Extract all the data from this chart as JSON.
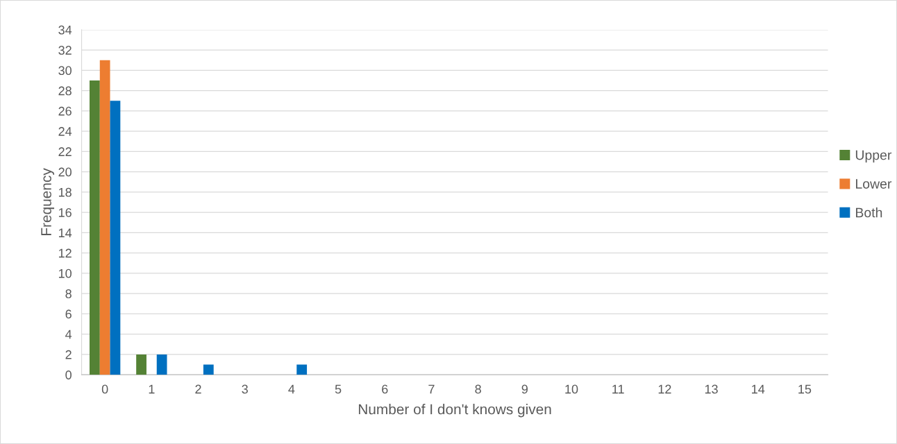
{
  "chart_data": {
    "type": "bar",
    "xlabel": "Number of I don't knows given",
    "ylabel": "Frequency",
    "categories": [
      "0",
      "1",
      "2",
      "3",
      "4",
      "5",
      "6",
      "7",
      "8",
      "9",
      "10",
      "11",
      "12",
      "13",
      "14",
      "15"
    ],
    "series": [
      {
        "name": "Upper",
        "color": "#548235",
        "values": [
          29,
          2,
          0,
          0,
          0,
          0,
          0,
          0,
          0,
          0,
          0,
          0,
          0,
          0,
          0,
          0
        ]
      },
      {
        "name": "Lower",
        "color": "#ed7d31",
        "values": [
          31,
          0,
          0,
          0,
          0,
          0,
          0,
          0,
          0,
          0,
          0,
          0,
          0,
          0,
          0,
          0
        ]
      },
      {
        "name": "Both",
        "color": "#0070c0",
        "values": [
          27,
          2,
          1,
          0,
          1,
          0,
          0,
          0,
          0,
          0,
          0,
          0,
          0,
          0,
          0,
          0
        ]
      }
    ],
    "ylim": [
      0,
      34
    ],
    "yticks": [
      0,
      2,
      4,
      6,
      8,
      10,
      12,
      14,
      16,
      18,
      20,
      22,
      24,
      26,
      28,
      30,
      32,
      34
    ],
    "grid": "y",
    "legend": "right"
  }
}
